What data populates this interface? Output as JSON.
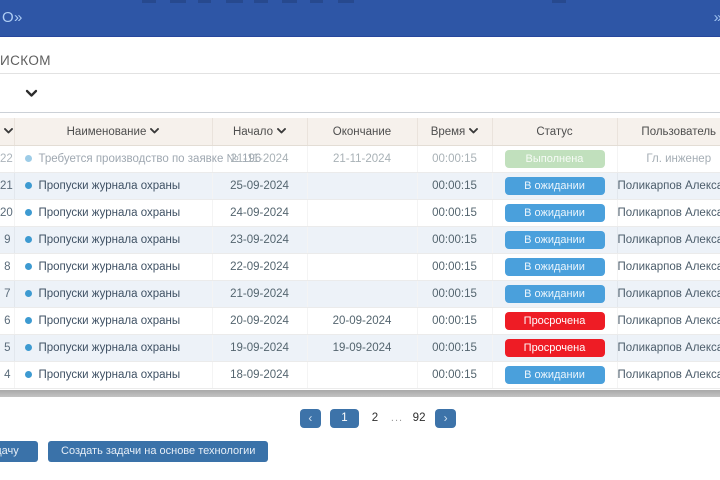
{
  "topbar": {
    "title_fragment": "О»",
    "expand_icon": "»"
  },
  "section": {
    "label_fragment": "ИСКОМ"
  },
  "icons": {
    "sort-chevron": "⌄",
    "select-chevron": "⌄",
    "row-dot": "●",
    "pager-prev": "‹",
    "pager-next": "›",
    "topbar-expand": "»"
  },
  "table": {
    "columns": [
      {
        "key": "id",
        "label": "",
        "sortable": true
      },
      {
        "key": "name",
        "label": "Наименование",
        "sortable": true
      },
      {
        "key": "start",
        "label": "Начало",
        "sortable": true
      },
      {
        "key": "end",
        "label": "Окончание",
        "sortable": false
      },
      {
        "key": "time",
        "label": "Время",
        "sortable": true
      },
      {
        "key": "status",
        "label": "Статус",
        "sortable": false
      },
      {
        "key": "user",
        "label": "Пользователь",
        "sortable": false
      }
    ],
    "rows": [
      {
        "id": "22",
        "name": "Требуется производство по заявке № 196",
        "start": "21-11-2024",
        "end": "21-11-2024",
        "time": "00:00:15",
        "status": "Выполнена",
        "status_kind": "done",
        "user": "Гл. инженер",
        "faded": true
      },
      {
        "id": "21",
        "name": "Пропуски журнала охраны",
        "start": "25-09-2024",
        "end": "",
        "time": "00:00:15",
        "status": "В ожидании",
        "status_kind": "waiting",
        "user": "Поликарпов Александрович",
        "faded": false
      },
      {
        "id": "20",
        "name": "Пропуски журнала охраны",
        "start": "24-09-2024",
        "end": "",
        "time": "00:00:15",
        "status": "В ожидании",
        "status_kind": "waiting",
        "user": "Поликарпов Александрович",
        "faded": false
      },
      {
        "id": "9",
        "name": "Пропуски журнала охраны",
        "start": "23-09-2024",
        "end": "",
        "time": "00:00:15",
        "status": "В ожидании",
        "status_kind": "waiting",
        "user": "Поликарпов Александрович",
        "faded": false
      },
      {
        "id": "8",
        "name": "Пропуски журнала охраны",
        "start": "22-09-2024",
        "end": "",
        "time": "00:00:15",
        "status": "В ожидании",
        "status_kind": "waiting",
        "user": "Поликарпов Александрович",
        "faded": false
      },
      {
        "id": "7",
        "name": "Пропуски журнала охраны",
        "start": "21-09-2024",
        "end": "",
        "time": "00:00:15",
        "status": "В ожидании",
        "status_kind": "waiting",
        "user": "Поликарпов Александрович",
        "faded": false
      },
      {
        "id": "6",
        "name": "Пропуски журнала охраны",
        "start": "20-09-2024",
        "end": "20-09-2024",
        "time": "00:00:15",
        "status": "Просрочена",
        "status_kind": "overdue",
        "user": "Поликарпов Александрович",
        "faded": false
      },
      {
        "id": "5",
        "name": "Пропуски журнала охраны",
        "start": "19-09-2024",
        "end": "19-09-2024",
        "time": "00:00:15",
        "status": "Просрочена",
        "status_kind": "overdue",
        "user": "Поликарпов Александрович",
        "faded": false
      },
      {
        "id": "4",
        "name": "Пропуски журнала охраны",
        "start": "18-09-2024",
        "end": "",
        "time": "00:00:15",
        "status": "В ожидании",
        "status_kind": "waiting",
        "user": "Поликарпов Александрович",
        "faded": false
      }
    ]
  },
  "pagination": {
    "items": [
      {
        "kind": "prev",
        "label": "‹"
      },
      {
        "kind": "page",
        "label": "1",
        "active": true
      },
      {
        "kind": "page",
        "label": "2",
        "active": false
      },
      {
        "kind": "dots",
        "label": "..."
      },
      {
        "kind": "page",
        "label": "92",
        "active": false
      },
      {
        "kind": "next",
        "label": "›"
      }
    ]
  },
  "footer": {
    "create_task_label": "Создать задачу",
    "create_from_tech_label": "Создать задачи на основе технологии"
  },
  "colors": {
    "topbar_bg": "#2e56a6",
    "header_bg": "#f6f1ec",
    "stripe_bg": "#edf2f8",
    "accent_blue": "#3d73a9",
    "badge_waiting": "#4aa0dc",
    "badge_done": "#85c37e",
    "badge_overdue": "#ee1c25"
  }
}
